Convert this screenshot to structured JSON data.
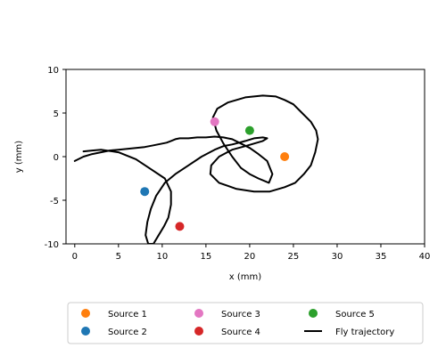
{
  "chart_data": {
    "type": "scatter",
    "title": "",
    "xlabel": "x (mm)",
    "ylabel": "y (mm)",
    "xlim": [
      -1,
      40
    ],
    "ylim": [
      -10,
      10
    ],
    "xticks": [
      0,
      5,
      10,
      15,
      20,
      25,
      30,
      35,
      40
    ],
    "yticks": [
      -10,
      -5,
      0,
      5,
      10
    ],
    "grid": false,
    "legend_position": "bottom, below plot",
    "series": [
      {
        "name": "Source 1",
        "kind": "point",
        "color": "#ff7f0e",
        "x": [
          24
        ],
        "y": [
          0
        ]
      },
      {
        "name": "Source 2",
        "kind": "point",
        "color": "#1f77b4",
        "x": [
          8
        ],
        "y": [
          -4
        ]
      },
      {
        "name": "Source 3",
        "kind": "point",
        "color": "#e377c2",
        "x": [
          16
        ],
        "y": [
          4
        ]
      },
      {
        "name": "Source 4",
        "kind": "point",
        "color": "#d62728",
        "x": [
          12
        ],
        "y": [
          -8
        ]
      },
      {
        "name": "Source 5",
        "kind": "point",
        "color": "#2ca02c",
        "x": [
          20
        ],
        "y": [
          3
        ]
      },
      {
        "name": "Fly trajectory",
        "kind": "line",
        "color": "#000000",
        "x": [
          0,
          1,
          2,
          3,
          4,
          5,
          6,
          7,
          8,
          9,
          10,
          10.5,
          11,
          11.5,
          12,
          13,
          14,
          15,
          16,
          17,
          18,
          19,
          20,
          21,
          22,
          22.6,
          22.2,
          21,
          20,
          19,
          18,
          17,
          16.2,
          15.8,
          16.3,
          17.5,
          19.5,
          21.5,
          23,
          24,
          25,
          26,
          27,
          27.6,
          27.8,
          27.5,
          27,
          26.2,
          25.2,
          24,
          22.3,
          20.5,
          18.5,
          16.5,
          15.5,
          15.6,
          16.5,
          18,
          19.5,
          20.5,
          21.5,
          22,
          21.5,
          20.5,
          19.5,
          18.8,
          18,
          17,
          16,
          14.5,
          13,
          11.5,
          10.3,
          9.3,
          8.7,
          8.3,
          8.1,
          8.4,
          9,
          9.6,
          10.2,
          10.7,
          11,
          11,
          10.3,
          8.8,
          7,
          5,
          3,
          2,
          1
        ],
        "y": [
          -0.5,
          0,
          0.3,
          0.5,
          0.7,
          0.8,
          0.9,
          1,
          1.1,
          1.3,
          1.5,
          1.6,
          1.8,
          2,
          2.1,
          2.1,
          2.2,
          2.2,
          2.3,
          2.2,
          2,
          1.5,
          1,
          0.3,
          -0.5,
          -2,
          -3,
          -2.5,
          -2,
          -1.3,
          0,
          1.5,
          3,
          4.5,
          5.5,
          6.2,
          6.8,
          7,
          6.9,
          6.5,
          6,
          5,
          4,
          3,
          2,
          0.5,
          -1,
          -2,
          -3,
          -3.5,
          -4,
          -4,
          -3.7,
          -3,
          -2,
          -1,
          0,
          0.8,
          1.2,
          1.5,
          1.8,
          2.1,
          2.2,
          2.1,
          1.8,
          1.6,
          1.4,
          1.2,
          0.8,
          0,
          -1,
          -2,
          -3,
          -4.5,
          -6,
          -7.5,
          -9,
          -10,
          -10,
          -9,
          -8,
          -7,
          -5.5,
          -4,
          -2.5,
          -1.5,
          -0.3,
          0.5,
          0.8,
          0.7,
          0.6
        ]
      }
    ]
  }
}
